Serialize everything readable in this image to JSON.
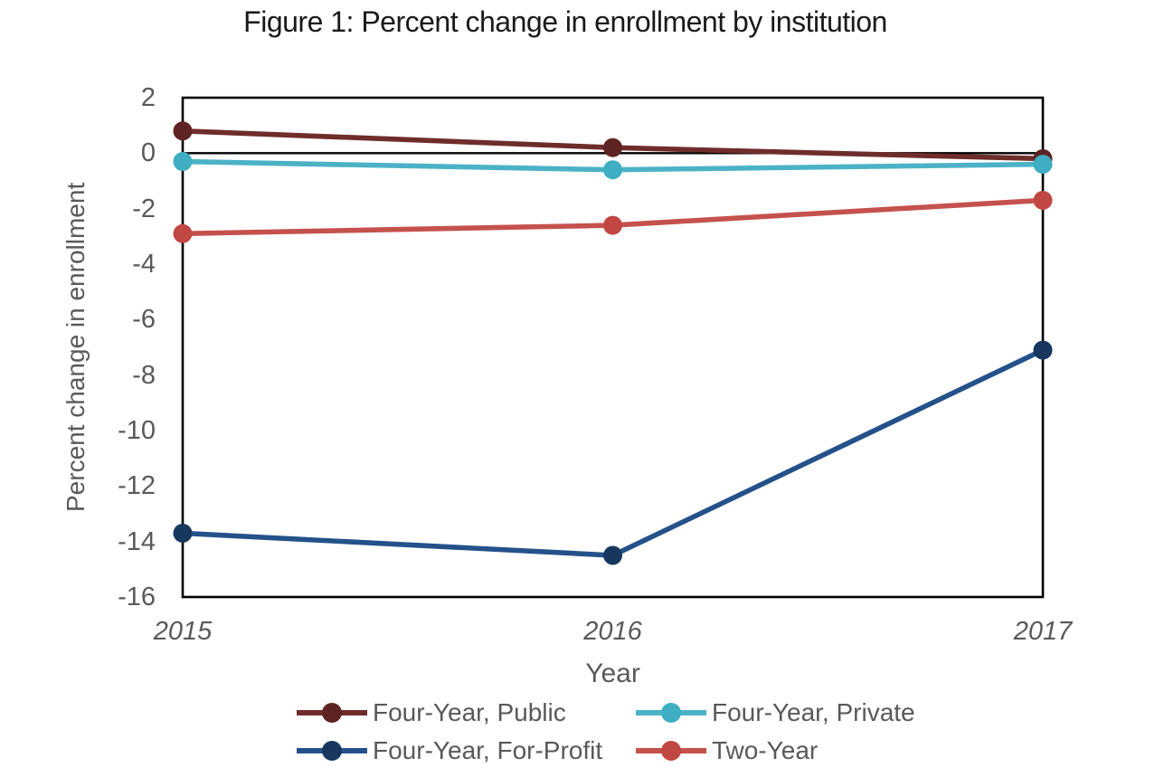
{
  "chart": {
    "title": "Figure 1: Percent change in enrollment by institution",
    "xlabel": "Year",
    "ylabel": "Percent change in enrollment"
  },
  "chart_data": {
    "type": "line",
    "title": "Figure 1: Percent change in enrollment by institution",
    "xlabel": "Year",
    "ylabel": "Percent change in enrollment",
    "categories": [
      "2015",
      "2016",
      "2017"
    ],
    "series": [
      {
        "name": "Four-Year, Public",
        "values": [
          0.8,
          0.2,
          -0.2
        ],
        "line_color": "#6e2d2a",
        "marker_color": "#5d2423"
      },
      {
        "name": "Four-Year, Private",
        "values": [
          -0.3,
          -0.6,
          -0.4
        ],
        "line_color": "#4bb2c6",
        "marker_color": "#3fadc2"
      },
      {
        "name": "Four-Year, For-Profit",
        "values": [
          -13.7,
          -14.5,
          -7.1
        ],
        "line_color": "#24518a",
        "marker_color": "#17375e"
      },
      {
        "name": "Two-Year",
        "values": [
          -2.9,
          -2.6,
          -1.7
        ],
        "line_color": "#c5514d",
        "marker_color": "#c14743"
      }
    ],
    "ylim": [
      -16,
      2
    ],
    "yticks": [
      2,
      0,
      -2,
      -4,
      -6,
      -8,
      -10,
      -12,
      -14,
      -16
    ],
    "xticks_italic": true,
    "grid": false,
    "zero_line": true,
    "plot_border": true,
    "legend_position": "bottom",
    "legend_rows": [
      [
        "Four-Year, Public",
        "Four-Year, Private"
      ],
      [
        "Four-Year, For-Profit",
        "Two-Year"
      ]
    ],
    "colors": {
      "axis": "#000000",
      "title_text": "#1a1a1a",
      "tick_label": "#595959",
      "axis_title": "#595959",
      "legend_text": "#595959",
      "background": "#ffffff"
    }
  }
}
